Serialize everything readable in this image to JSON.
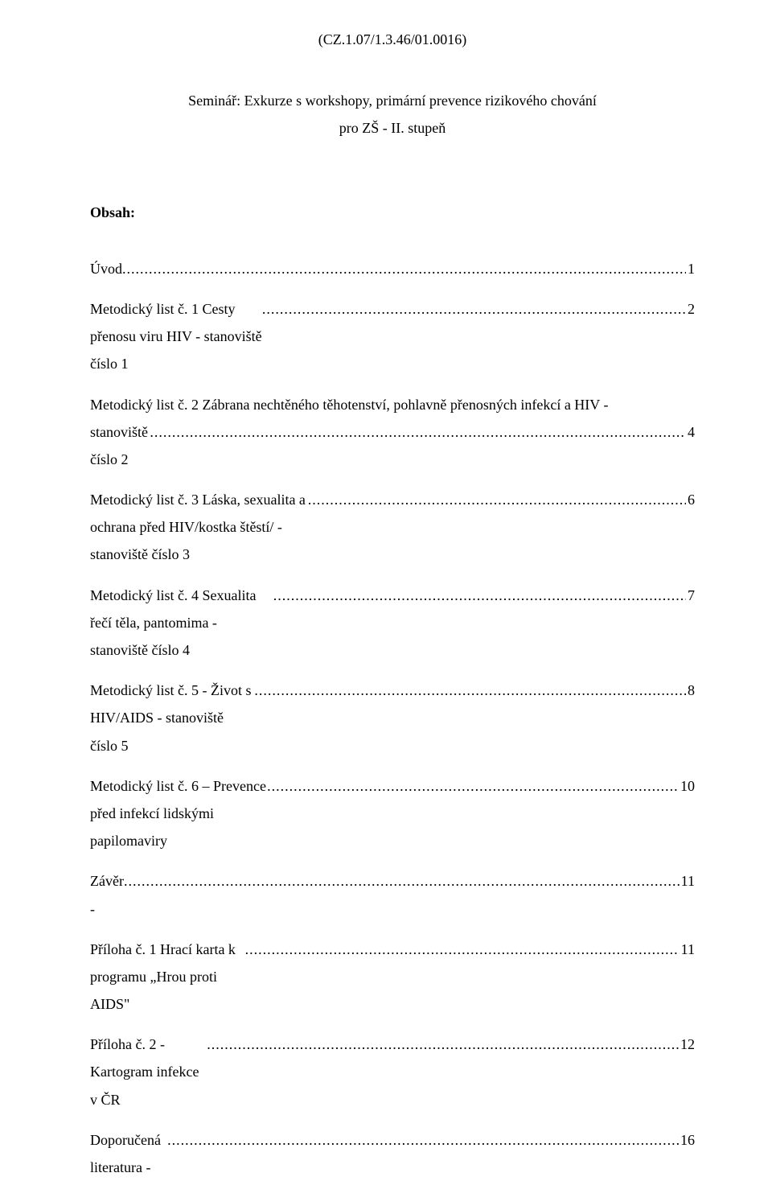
{
  "header": {
    "code": "(CZ.1.07/1.3.46/01.0016)",
    "seminar_label": "Seminář: Exkurze s workshopy, primární prevence rizikového chování",
    "seminar_sub": "pro ZŠ - II. stupeň"
  },
  "obsah_title": "Obsah:",
  "toc": {
    "uvod": {
      "label": "Úvod",
      "page": "1"
    },
    "m1": {
      "label": "Metodický list č. 1 Cesty přenosu viru HIV - stanoviště číslo 1",
      "page": "2"
    },
    "m2": {
      "line1": "Metodický list č. 2 Zábrana nechtěného těhotenství, pohlavně přenosných infekcí a HIV -",
      "line2": "stanoviště číslo 2",
      "page": "4"
    },
    "m3": {
      "label": "Metodický list č. 3 Láska, sexualita a ochrana před HIV/kostka štěstí/ - stanoviště číslo 3",
      "page": "6"
    },
    "m4": {
      "label": "Metodický list č. 4 Sexualita řečí těla, pantomima -stanoviště číslo 4",
      "page": "7"
    },
    "m5": {
      "label": "Metodický list č. 5 - Život s HIV/AIDS - stanoviště číslo 5",
      "page": "8"
    },
    "m6": {
      "label": "Metodický list č. 6 – Prevence před infekcí lidskými papilomaviry",
      "page": "10"
    },
    "zaver": {
      "label": "Závěr - ",
      "page": "11"
    },
    "p1": {
      "label": "Příloha č. 1 Hrací karta k programu „Hrou proti AIDS\"",
      "page": "11"
    },
    "p2": {
      "label": "Příloha č. 2 -  Kartogram infekce v ČR",
      "page": "12"
    },
    "lit": {
      "label": "Doporučená literatura - ",
      "page": "16"
    }
  }
}
